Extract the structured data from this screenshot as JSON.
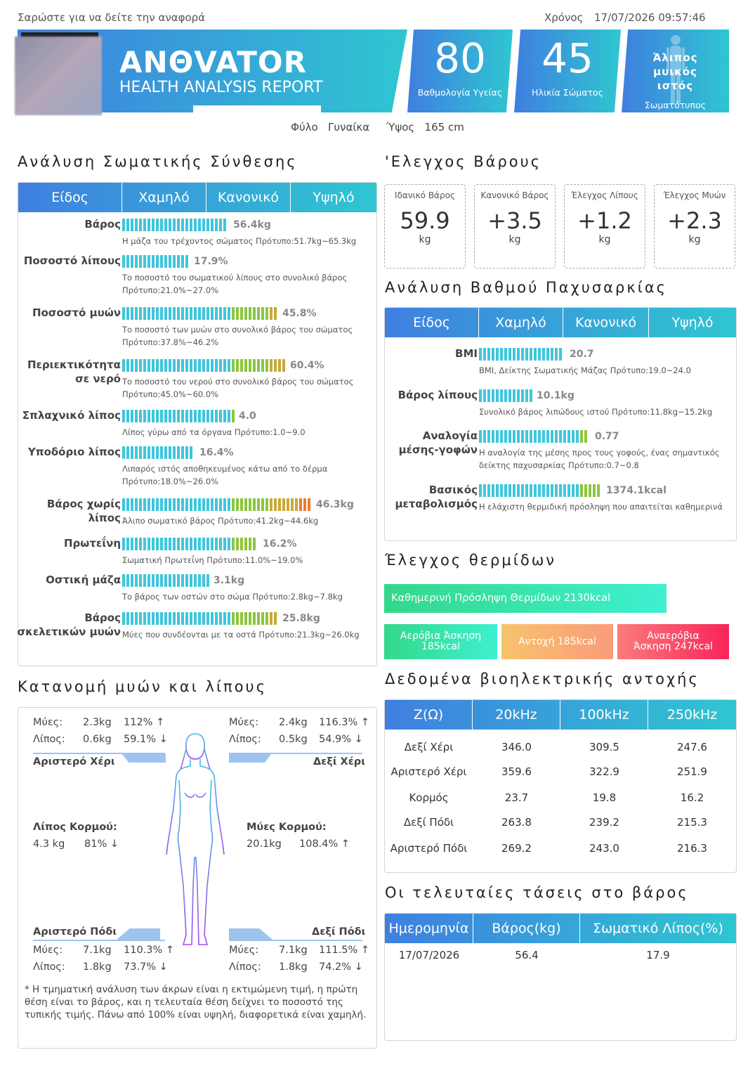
{
  "top": {
    "scan_text": "Σαρώστε για να δείτε την αναφορά",
    "time_label": "Χρόνος",
    "time_value": "17/07/2026 09:57:46"
  },
  "header": {
    "logo": "ANΘVATOR",
    "subtitle": "HEALTH ANALYSIS REPORT",
    "cards": [
      {
        "value": "80",
        "label": "Βαθμολογία Υγείας"
      },
      {
        "value": "45",
        "label": "Ηλικία Σώματος"
      }
    ],
    "body_type_title": "Άλιπος μυικός ιστός",
    "body_type_label": "Σωματότυπος"
  },
  "person": {
    "gender_label": "Φύλο",
    "gender": "Γυναίκα",
    "height_label": "Ύψος",
    "height": "165 cm"
  },
  "composition": {
    "title": "Ανάλυση Σωματικής Σύνθεσης",
    "headers": [
      "Είδος",
      "Χαμηλό",
      "Κανονικό",
      "Υψηλό"
    ],
    "rows": [
      {
        "label": "Βάρος",
        "value": "56.4kg",
        "level": 0.55,
        "desc": "Η μάζα του τρέχοντος σώματος   Πρότυπο:51.7kg~65.3kg"
      },
      {
        "label": "Ποσοστό λίπους",
        "value": "17.9%",
        "level": 0.35,
        "desc": "Το ποσοστό του σωματικού λίπους στο συνολικό βάρος Πρότυπο:21.0%~27.0%"
      },
      {
        "label": "Ποσοστό μυών",
        "value": "45.8%",
        "level": 0.8,
        "desc": "Το ποσοστό των μυών στο συνολικό βάρος του σώματος   Πρότυπο:37.8%~46.2%"
      },
      {
        "label": "Περιεκτικότητα σε νερό",
        "value": "60.4%",
        "level": 0.84,
        "desc": "Το ποσοστό του νερού στο συνολικό βάρος του σώματος   Πρότυπο:45.0%~60.0%"
      },
      {
        "label": "Σπλαχνικό λίπος",
        "value": "4.0",
        "level": 0.58,
        "desc": "Λίπος γύρω από τα όργανα   Πρότυπο:1.0~9.0"
      },
      {
        "label": "Υποδόριο λίπος",
        "value": "16.4%",
        "level": 0.38,
        "desc": "Λιπαρός ιστός αποθηκευμένος κάτω από το δέρμα Πρότυπο:18.0%~26.0%"
      },
      {
        "label": "Βάρος χωρίς λίπος",
        "value": "46.3kg",
        "level": 0.97,
        "desc": "Άλιπο σωματικό βάρος   Πρότυπο:41.2kg~44.6kg"
      },
      {
        "label": "Πρωτεΐνη",
        "value": "16.2%",
        "level": 0.7,
        "desc": "Σωματική Πρωτεΐνη   Πρότυπο:11.0%~19.0%"
      },
      {
        "label": "Οστική μάζα",
        "value": "3.1kg",
        "level": 0.45,
        "desc": "Το βάρος των οστών στο σώμα   Πρότυπο:2.8kg~7.8kg"
      },
      {
        "label": "Βάρος σκελετικών μυών",
        "value": "25.8kg",
        "level": 0.8,
        "desc": "Μύες που συνδέονται με τα οστά Πρότυπο:21.3kg~26.0kg"
      }
    ]
  },
  "weight_control": {
    "title": "'Ελεγχος Βάρους",
    "items": [
      {
        "label": "Ιδανικό Βάρος",
        "value": "59.9",
        "unit": "kg"
      },
      {
        "label": "Κανονικό Βάρος",
        "value": "+3.5",
        "unit": "kg"
      },
      {
        "label": "Έλεγχος Λίπους",
        "value": "+1.2",
        "unit": "kg"
      },
      {
        "label": "Έλεγχος Μυών",
        "value": "+2.3",
        "unit": "kg"
      }
    ]
  },
  "obesity": {
    "title": "Ανάλυση Βαθμού Παχυσαρκίας",
    "headers": [
      "Είδος",
      "Χαμηλό",
      "Κανονικό",
      "Υψηλό"
    ],
    "rows": [
      {
        "label": "BMI",
        "value": "20.7",
        "level": 0.48,
        "desc": "BMI, Δείκτης Σωματικής Μάζας   Πρότυπο:19.0~24.0"
      },
      {
        "label": "Βάρος λίπους",
        "value": "10.1kg",
        "level": 0.3,
        "desc": "Συνολικό βάρος λιπώδους ιστού   Πρότυπο:11.8kg~15.2kg"
      },
      {
        "label": "Αναλογία μέσης-γοφών",
        "value": "0.77",
        "level": 0.62,
        "desc": "Η αναλογία της μέσης προς τους γοφούς, ένας σημαντικός δείκτης παχυσαρκίας   Πρότυπο:0.7~0.8"
      },
      {
        "label": "Βασικός μεταβολισμός",
        "value": "1374.1kcal",
        "level": 0.68,
        "desc": "Η ελάχιστη θερμιδική πρόσληψη που απαιτείται καθημερινά"
      }
    ]
  },
  "calorie": {
    "title": "Έλεγχος θερμίδων",
    "daily": "Καθημερινή Πρόσληψη Θερμίδων    2130kcal",
    "aerobic": "Αερόβια Άσκηση 185kcal",
    "endurance": "Αντοχή   185kcal",
    "anaerobic": "Αναερόβια Άσκηση   247kcal"
  },
  "distribution": {
    "title": "Κατανομή μυών και λίπους",
    "muscle_label": "Μύες:",
    "fat_label": "Λίπος:",
    "left_arm": {
      "name": "Αριστερό Χέρι",
      "muscle": "2.3kg",
      "muscle_pct": "112% ↑",
      "fat": "0.6kg",
      "fat_pct": "59.1% ↓"
    },
    "right_arm": {
      "name": "Δεξί Χέρι",
      "muscle": "2.4kg",
      "muscle_pct": "116.3% ↑",
      "fat": "0.5kg",
      "fat_pct": "54.9% ↓"
    },
    "trunk_fat": {
      "name": "Λίπος Κορμού:",
      "value": "4.3 kg",
      "pct": "81% ↓"
    },
    "trunk_muscle": {
      "name": "Μύες Κορμού:",
      "value": "20.1kg",
      "pct": "108.4% ↑"
    },
    "left_leg": {
      "name": "Αριστερό Πόδι",
      "muscle": "7.1kg",
      "muscle_pct": "110.3% ↑",
      "fat": "1.8kg",
      "fat_pct": "73.7% ↓"
    },
    "right_leg": {
      "name": "Δεξί Πόδι",
      "muscle": "7.1kg",
      "muscle_pct": "111.5% ↑",
      "fat": "1.8kg",
      "fat_pct": "74.2% ↓"
    },
    "note": "* Η τμηματική ανάλυση των άκρων είναι η εκτιμώμενη τιμή, η πρώτη θέση είναι το βάρος, και η τελευταία θέση δείχνει το ποσοστό της τυπικής τιμής. Πάνω από 100% είναι υψηλή, διαφορετικά είναι χαμηλή."
  },
  "bio": {
    "title": "Δεδομένα βιοηλεκτρικής αντοχής",
    "headers": [
      "Z(Ω)",
      "20kHz",
      "100kHz",
      "250kHz"
    ],
    "rows": [
      [
        "Δεξί Χέρι",
        "346.0",
        "309.5",
        "247.6"
      ],
      [
        "Αριστερό Χέρι",
        "359.6",
        "322.9",
        "251.9"
      ],
      [
        "Κορμός",
        "23.7",
        "19.8",
        "16.2"
      ],
      [
        "Δεξί Πόδι",
        "263.8",
        "239.2",
        "215.3"
      ],
      [
        "Αριστερό Πόδι",
        "269.2",
        "243.0",
        "216.3"
      ]
    ]
  },
  "trend": {
    "title": "Οι τελευταίες τάσεις στο βάρος",
    "headers": [
      "Ημερομηνία",
      "Βάρος(kg)",
      "Σωματικό Λίπος(%)"
    ],
    "rows": [
      [
        "17/07/2026",
        "56.4",
        "17.9"
      ]
    ]
  },
  "colors": {
    "blue": "#3f7fe0",
    "teal": "#2fc6d1",
    "bar_cyan": "#3fc6dc",
    "bar_green": "#8cc63f",
    "bar_orange": "#f07a2a"
  }
}
